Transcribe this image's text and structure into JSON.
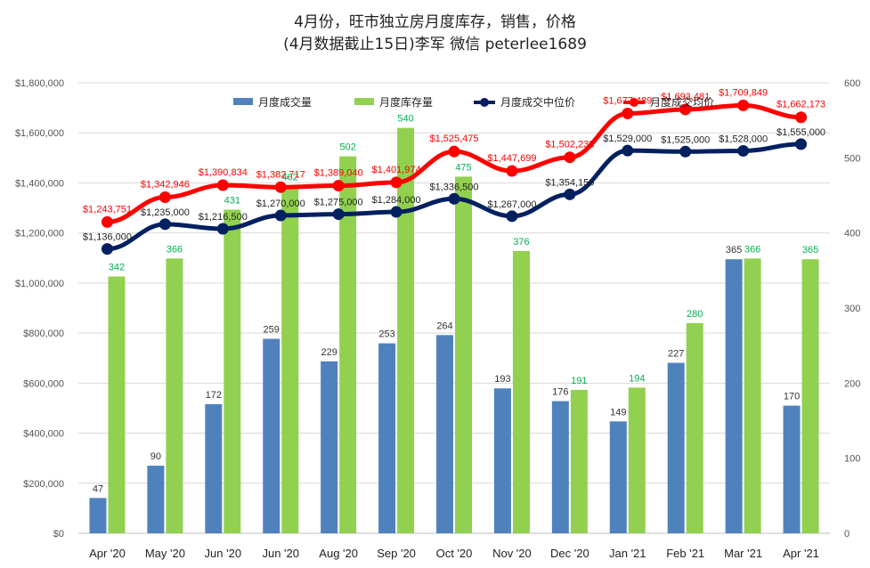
{
  "title": "4月份，旺市独立房月度库存，销售，价格",
  "subtitle": "(4月数据截止15日)李军  微信 peterlee1689",
  "colors": {
    "sales_bar": "#4f81bd",
    "inventory_bar": "#92d050",
    "median_line": "#002060",
    "avg_line": "#ff0000",
    "inventory_label": "#00b050",
    "avg_label": "#ff0000",
    "median_label": "#1f1f1f",
    "grid": "#d9d9d9"
  },
  "chart_data": {
    "type": "bar",
    "categories": [
      "Apr '20",
      "May '20",
      "Jun '20",
      "Jun '20",
      "Aug '20",
      "Sep '20",
      "Oct '20",
      "Nov '20",
      "Dec '20",
      "Jan '21",
      "Feb '21",
      "Mar '21",
      "Apr '21"
    ],
    "left_axis": {
      "ylim": [
        0,
        1800000
      ],
      "ticks": [
        0,
        200000,
        400000,
        600000,
        800000,
        1000000,
        1200000,
        1400000,
        1600000,
        1800000
      ],
      "tick_labels": [
        "$0",
        "$200,000",
        "$400,000",
        "$600,000",
        "$800,000",
        "$1,000,000",
        "$1,200,000",
        "$1,400,000",
        "$1,600,000",
        "$1,800,000"
      ]
    },
    "right_axis": {
      "ylim": [
        0,
        600
      ],
      "ticks": [
        0,
        100,
        200,
        300,
        400,
        500,
        600
      ],
      "tick_labels": [
        "0",
        "100",
        "200",
        "300",
        "400",
        "500",
        "600"
      ]
    },
    "legend": {
      "position": "top"
    },
    "series": [
      {
        "name": "月度成交量",
        "type": "bar",
        "axis": "right",
        "values": [
          47,
          90,
          172,
          259,
          229,
          253,
          264,
          193,
          176,
          149,
          227,
          365,
          170
        ],
        "labels": [
          "47",
          "90",
          "172",
          "259",
          "229",
          "253",
          "264",
          "193",
          "176",
          "149",
          "227",
          "365",
          "170"
        ]
      },
      {
        "name": "月度库存量",
        "type": "bar",
        "axis": "right",
        "values": [
          342,
          366,
          431,
          462,
          502,
          540,
          475,
          376,
          191,
          194,
          280,
          366,
          365
        ],
        "labels": [
          "342",
          "366",
          "431",
          "462",
          "502",
          "540",
          "475",
          "376",
          "191",
          "194",
          "280",
          "366",
          "365"
        ]
      },
      {
        "name": "月度成交中位价",
        "type": "line",
        "axis": "left",
        "values": [
          1136000,
          1235000,
          1216500,
          1270000,
          1275000,
          1284000,
          1336500,
          1267000,
          1354150,
          1529000,
          1525000,
          1528000,
          1555000
        ],
        "labels": [
          "$1,136,000",
          "$1,235,000",
          "$1,216,500",
          "$1,270,000",
          "$1,275,000",
          "$1,284,000",
          "$1,336,500",
          "$1,267,000",
          "$1,354,150",
          "$1,529,000",
          "$1,525,000",
          "$1,528,000",
          "$1,555,000"
        ]
      },
      {
        "name": "月度成交均价",
        "type": "line",
        "axis": "left",
        "values": [
          1243751,
          1342946,
          1390834,
          1382717,
          1389040,
          1401974,
          1525475,
          1447699,
          1502233,
          1677489,
          1693481,
          1709849,
          1662173
        ],
        "labels": [
          "$1,243,751",
          "$1,342,946",
          "$1,390,834",
          "$1,382,717",
          "$1,389,040",
          "$1,401,974",
          "$1,525,475",
          "$1,447,699",
          "$1,502,233",
          "$1,677,489",
          "$1,693,481",
          "$1,709,849",
          "$1,662,173"
        ]
      }
    ]
  }
}
